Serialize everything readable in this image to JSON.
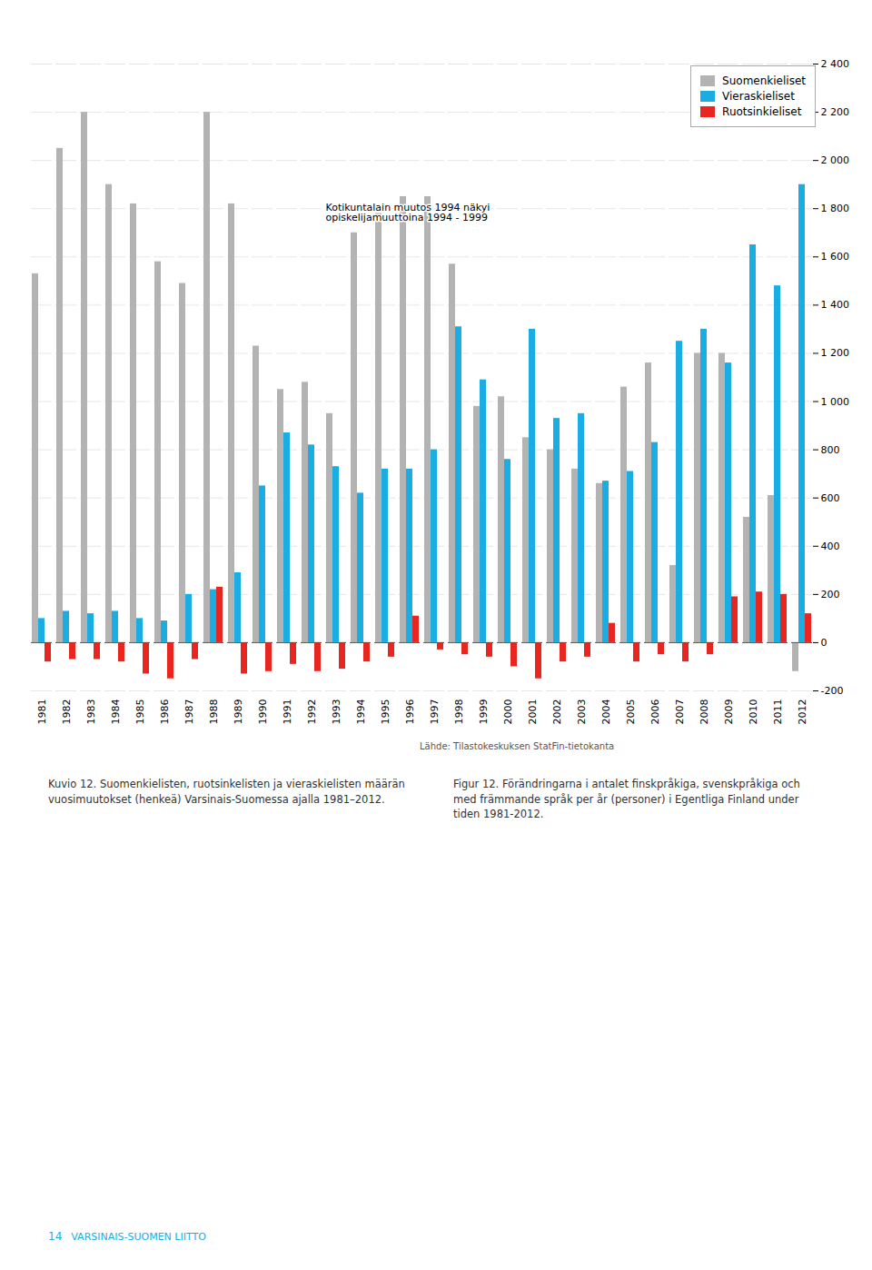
{
  "chart_data": {
    "type": "bar",
    "categories": [
      "1981",
      "1982",
      "1983",
      "1984",
      "1985",
      "1986",
      "1987",
      "1988",
      "1989",
      "1990",
      "1991",
      "1992",
      "1993",
      "1994",
      "1995",
      "1996",
      "1997",
      "1998",
      "1999",
      "2000",
      "2001",
      "2002",
      "2003",
      "2004",
      "2005",
      "2006",
      "2007",
      "2008",
      "2009",
      "2010",
      "2011",
      "2012"
    ],
    "series": [
      {
        "name": "Suomenkieliset",
        "color": "#b3b3b3",
        "values": [
          1530,
          2050,
          2200,
          1900,
          1820,
          1580,
          1490,
          2200,
          1820,
          1230,
          1050,
          1080,
          950,
          1700,
          1780,
          1850,
          1850,
          1570,
          980,
          1020,
          850,
          800,
          720,
          660,
          1060,
          1160,
          320,
          1200,
          1200,
          520,
          610,
          -120
        ]
      },
      {
        "name": "Vieraskieliset",
        "color": "#1aade3",
        "values": [
          100,
          130,
          120,
          130,
          100,
          90,
          200,
          220,
          290,
          650,
          870,
          820,
          730,
          620,
          720,
          720,
          800,
          1310,
          1090,
          760,
          1300,
          930,
          950,
          670,
          710,
          830,
          1250,
          1300,
          1160,
          1650,
          1480,
          1900
        ]
      },
      {
        "name": "Ruotsinkieliset",
        "color": "#e8251f",
        "values": [
          -80,
          -70,
          -70,
          -80,
          -130,
          -150,
          -70,
          230,
          -130,
          -120,
          -90,
          -120,
          -110,
          -80,
          -60,
          110,
          -30,
          -50,
          -60,
          -100,
          -150,
          -80,
          -60,
          80,
          -80,
          -50,
          -80,
          -50,
          190,
          210,
          200,
          120
        ]
      }
    ],
    "ylim": [
      -200,
      2400
    ],
    "yticks": [
      -200,
      0,
      200,
      400,
      600,
      800,
      {
        "value": 1000,
        "label": "1 000"
      },
      {
        "value": 1200,
        "label": "1 200"
      },
      {
        "value": 1400,
        "label": "1 400"
      },
      {
        "value": 1600,
        "label": "1 600"
      },
      {
        "value": 1800,
        "label": "1 800"
      },
      {
        "value": 2000,
        "label": "2 000"
      },
      {
        "value": 2200,
        "label": "2 200"
      },
      {
        "value": 2400,
        "label": "2 400"
      }
    ],
    "grid": true,
    "legend": "upper right",
    "annotations": [
      {
        "text": "Kotikuntalain muutos 1994 näkyi\nopiskelijamuuttoina 1994 - 1999",
        "x": "1993",
        "y": 1820
      }
    ],
    "source": "Lähde: Tilastokeskuksen StatFin-tietokanta",
    "caption": [
      "Kuvio 12. Suomenkielisten, ruotsinkelisten ja vieraskielisten määrän\nvuosimuutokset (henkeä) Varsinais-Suomessa ajalla 1981–2012.",
      "Figur 12. Förändringarna i antalet finskpråkiga, svenskpråkiga och\nmed främmande språk per år (personer) i Egentliga Finland under\ntiden 1981-2012."
    ],
    "footer": [
      "14",
      "VARSINAIS-SUOMEN LIITTO"
    ]
  }
}
